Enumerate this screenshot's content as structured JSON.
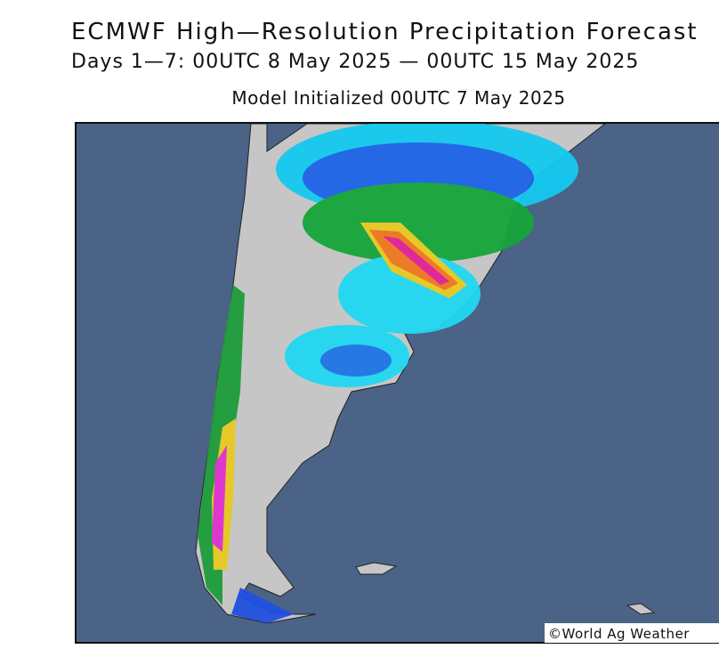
{
  "header": {
    "title": "ECMWF High—Resolution Precipitation Forecast",
    "subtitle": "Days 1—7: 00UTC 8 May 2025 — 00UTC 15 May 2025",
    "initialized": "Model Initialized 00UTC 7 May 2025"
  },
  "map": {
    "credit": "©World Ag Weather"
  }
}
